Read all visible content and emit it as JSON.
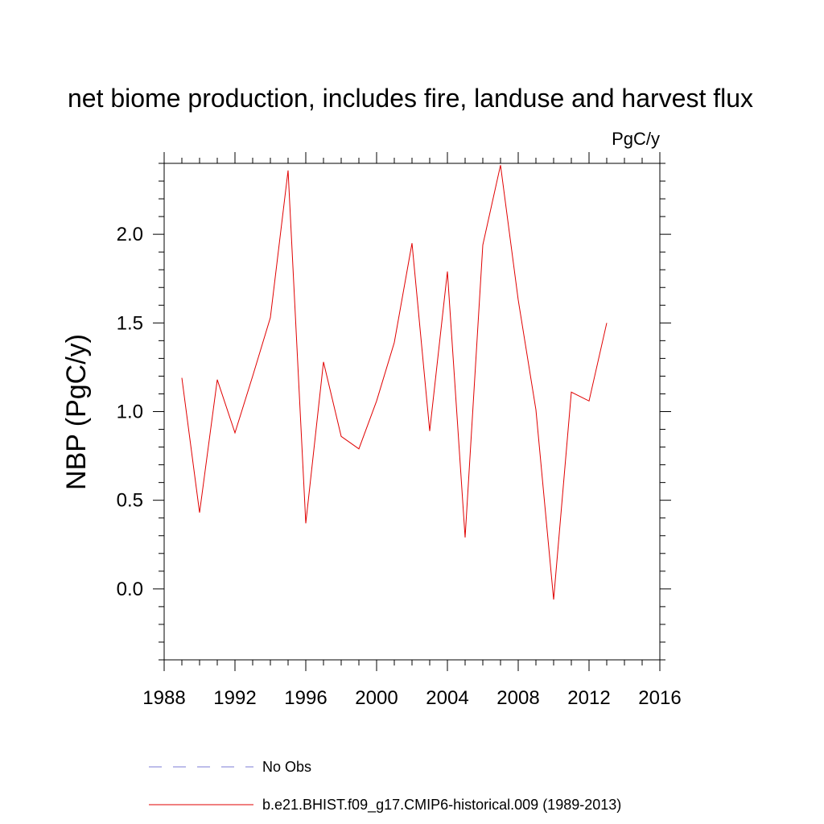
{
  "chart_data": {
    "type": "line",
    "title": "net biome production, includes fire, landuse and harvest flux",
    "units": "PgC/y",
    "ylabel": "NBP  (PgC/y)",
    "xlabel": "",
    "xlim": [
      1988,
      2016
    ],
    "ylim": [
      -0.4,
      2.4
    ],
    "xticks": [
      1988,
      1992,
      1996,
      2000,
      2004,
      2008,
      2012,
      2016
    ],
    "xtick_labels": [
      "1988",
      "1992",
      "1996",
      "2000",
      "2004",
      "2008",
      "2012",
      "2016"
    ],
    "yticks": [
      0.0,
      0.5,
      1.0,
      1.5,
      2.0
    ],
    "ytick_labels": [
      "0.0",
      "0.5",
      "1.0",
      "1.5",
      "2.0"
    ],
    "grid": false,
    "legend_position": "bottom",
    "series": [
      {
        "name": "No Obs",
        "color": "#7b7bd6",
        "dash": "dashed",
        "x": [],
        "y": []
      },
      {
        "name": "b.e21.BHIST.f09_g17.CMIP6-historical.009 (1989-2013)",
        "color": "#e00000",
        "dash": "solid",
        "x": [
          1989,
          1990,
          1991,
          1992,
          1993,
          1994,
          1995,
          1996,
          1997,
          1998,
          1999,
          2000,
          2001,
          2002,
          2003,
          2004,
          2005,
          2006,
          2007,
          2008,
          2009,
          2010,
          2011,
          2012,
          2013
        ],
        "y": [
          1.19,
          0.43,
          1.18,
          0.88,
          1.2,
          1.53,
          2.36,
          0.37,
          1.28,
          0.86,
          0.79,
          1.06,
          1.39,
          1.95,
          0.89,
          1.79,
          0.29,
          1.94,
          2.39,
          1.63,
          1.01,
          -0.06,
          1.11,
          1.06,
          1.5
        ]
      }
    ]
  }
}
